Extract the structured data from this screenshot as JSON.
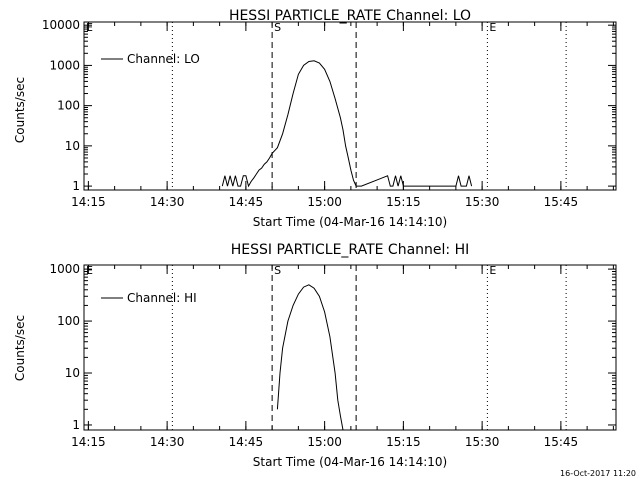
{
  "footer_stamp": "16-Oct-2017 11:20",
  "chart_data": [
    {
      "type": "line",
      "title": "HESSI PARTICLE_RATE Channel: LO",
      "xlabel": "Start Time (04-Mar-16 14:14:10)",
      "ylabel": "Counts/sec",
      "yscale": "log",
      "ylim": [
        0.8,
        12000
      ],
      "xlim": [
        "14:14:10",
        "15:55:30"
      ],
      "x_ticks": [
        "14:15",
        "14:30",
        "14:45",
        "15:00",
        "15:15",
        "15:30",
        "15:45"
      ],
      "y_ticks": [
        "1",
        "10",
        "100",
        "1000",
        "10000"
      ],
      "legend": {
        "label": "Channel: LO",
        "position": "top-left"
      },
      "markers": [
        {
          "label": "S",
          "time": "14:50:00",
          "style": "dashed"
        },
        {
          "label": "",
          "time": "15:06:00",
          "style": "dashed"
        },
        {
          "label": "E",
          "time": "15:31:00",
          "style": "dotted"
        },
        {
          "label": "E",
          "time": "14:14:10",
          "style": "dotted"
        }
      ],
      "reference_lines": [
        {
          "time": "14:31:00",
          "style": "dotted"
        },
        {
          "time": "15:46:00",
          "style": "dotted"
        }
      ],
      "series": [
        {
          "x": [
            "14:40:30",
            "14:41:00",
            "14:41:30",
            "14:42:00",
            "14:42:30",
            "14:43:00",
            "14:43:30",
            "14:44:00",
            "14:44:30",
            "14:45:00",
            "14:45:30",
            "14:46:00",
            "14:46:30",
            "14:47:00",
            "14:47:30",
            "14:48:00",
            "14:48:30",
            "14:49:00",
            "14:49:30",
            "14:50:00",
            "14:51:00",
            "14:52:00",
            "14:53:00",
            "14:54:00",
            "14:55:00",
            "14:56:00",
            "14:57:00",
            "14:58:00",
            "14:59:00",
            "15:00:00",
            "15:01:00",
            "15:02:00",
            "15:03:00",
            "15:03:30",
            "15:04:00",
            "15:04:30",
            "15:05:00",
            "15:05:30",
            "15:06:00",
            "15:06:30",
            "15:07:00",
            "15:12:00",
            "15:12:30",
            "15:13:00",
            "15:13:30",
            "15:14:00",
            "15:14:30",
            "15:15:00",
            "15:15:30",
            "15:16:00",
            "15:25:00",
            "15:25:30",
            "15:26:00",
            "15:27:00",
            "15:27:30",
            "15:28:00"
          ],
          "y": [
            1,
            1.8,
            1,
            1.8,
            1,
            1.8,
            1,
            1,
            1.8,
            1.8,
            1,
            1.3,
            1.6,
            2,
            2.5,
            2.8,
            3.5,
            4,
            5,
            6.5,
            9,
            20,
            60,
            200,
            600,
            1000,
            1250,
            1300,
            1150,
            800,
            400,
            150,
            50,
            25,
            10,
            5,
            2.5,
            1.4,
            1,
            1,
            1,
            1.8,
            1,
            1,
            1.8,
            1,
            1.8,
            1,
            1,
            1,
            1,
            1.8,
            1,
            1,
            1.8,
            1
          ]
        }
      ]
    },
    {
      "type": "line",
      "title": "HESSI PARTICLE_RATE Channel: HI",
      "xlabel": "Start Time (04-Mar-16 14:14:10)",
      "ylabel": "Counts/sec",
      "yscale": "log",
      "ylim": [
        0.8,
        1200
      ],
      "xlim": [
        "14:14:10",
        "15:55:30"
      ],
      "x_ticks": [
        "14:15",
        "14:30",
        "14:45",
        "15:00",
        "15:15",
        "15:30",
        "15:45"
      ],
      "y_ticks": [
        "1",
        "10",
        "100",
        "1000"
      ],
      "legend": {
        "label": "Channel: HI",
        "position": "top-left"
      },
      "markers": [
        {
          "label": "S",
          "time": "14:50:00",
          "style": "dashed"
        },
        {
          "label": "",
          "time": "15:06:00",
          "style": "dashed"
        },
        {
          "label": "E",
          "time": "15:31:00",
          "style": "dotted"
        },
        {
          "label": "E",
          "time": "14:14:10",
          "style": "dotted"
        }
      ],
      "reference_lines": [
        {
          "time": "14:31:00",
          "style": "dotted"
        },
        {
          "time": "15:46:00",
          "style": "dotted"
        }
      ],
      "series": [
        {
          "x": [
            "14:51:00",
            "14:51:30",
            "14:52:00",
            "14:53:00",
            "14:54:00",
            "14:55:00",
            "14:56:00",
            "14:57:00",
            "14:58:00",
            "14:59:00",
            "15:00:00",
            "15:01:00",
            "15:02:00",
            "15:02:30",
            "15:03:00",
            "15:03:30"
          ],
          "y": [
            2,
            10,
            30,
            100,
            200,
            330,
            450,
            500,
            430,
            300,
            150,
            50,
            10,
            3,
            1.5,
            0.8
          ]
        }
      ]
    }
  ]
}
